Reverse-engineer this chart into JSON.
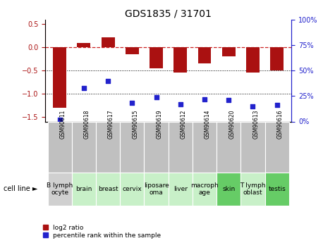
{
  "title": "GDS1835 / 31701",
  "samples": [
    "GSM90611",
    "GSM90618",
    "GSM90617",
    "GSM90615",
    "GSM90619",
    "GSM90612",
    "GSM90614",
    "GSM90620",
    "GSM90613",
    "GSM90616"
  ],
  "cell_lines": [
    "B lymph\nocyte",
    "brain",
    "breast",
    "cervix",
    "liposare\noma",
    "liver",
    "macroph\nage",
    "skin",
    "T lymph\noblast",
    "testis"
  ],
  "cell_colors": [
    "#d0d0d0",
    "#c8f0c8",
    "#c8f0c8",
    "#c8f0c8",
    "#c8f0c8",
    "#c8f0c8",
    "#c8f0c8",
    "#66cc66",
    "#c8f0c8",
    "#66cc66"
  ],
  "gsm_color": "#c0c0c0",
  "log2_ratio": [
    -1.3,
    0.1,
    0.22,
    -0.15,
    -0.45,
    -0.55,
    -0.35,
    -0.2,
    -0.55,
    -0.5
  ],
  "pct_rank": [
    2,
    33,
    40,
    18,
    24,
    17,
    22,
    21,
    15,
    16
  ],
  "ylim_left": [
    -1.6,
    0.6
  ],
  "ylim_right": [
    0,
    100
  ],
  "bar_color": "#aa1111",
  "dot_color": "#2222cc",
  "hline_color": "#cc2222",
  "dotline_color": "black",
  "bg_color": "white",
  "title_fontsize": 10,
  "tick_fontsize": 7,
  "gsm_fontsize": 5.5,
  "cell_fontsize": 6.5
}
